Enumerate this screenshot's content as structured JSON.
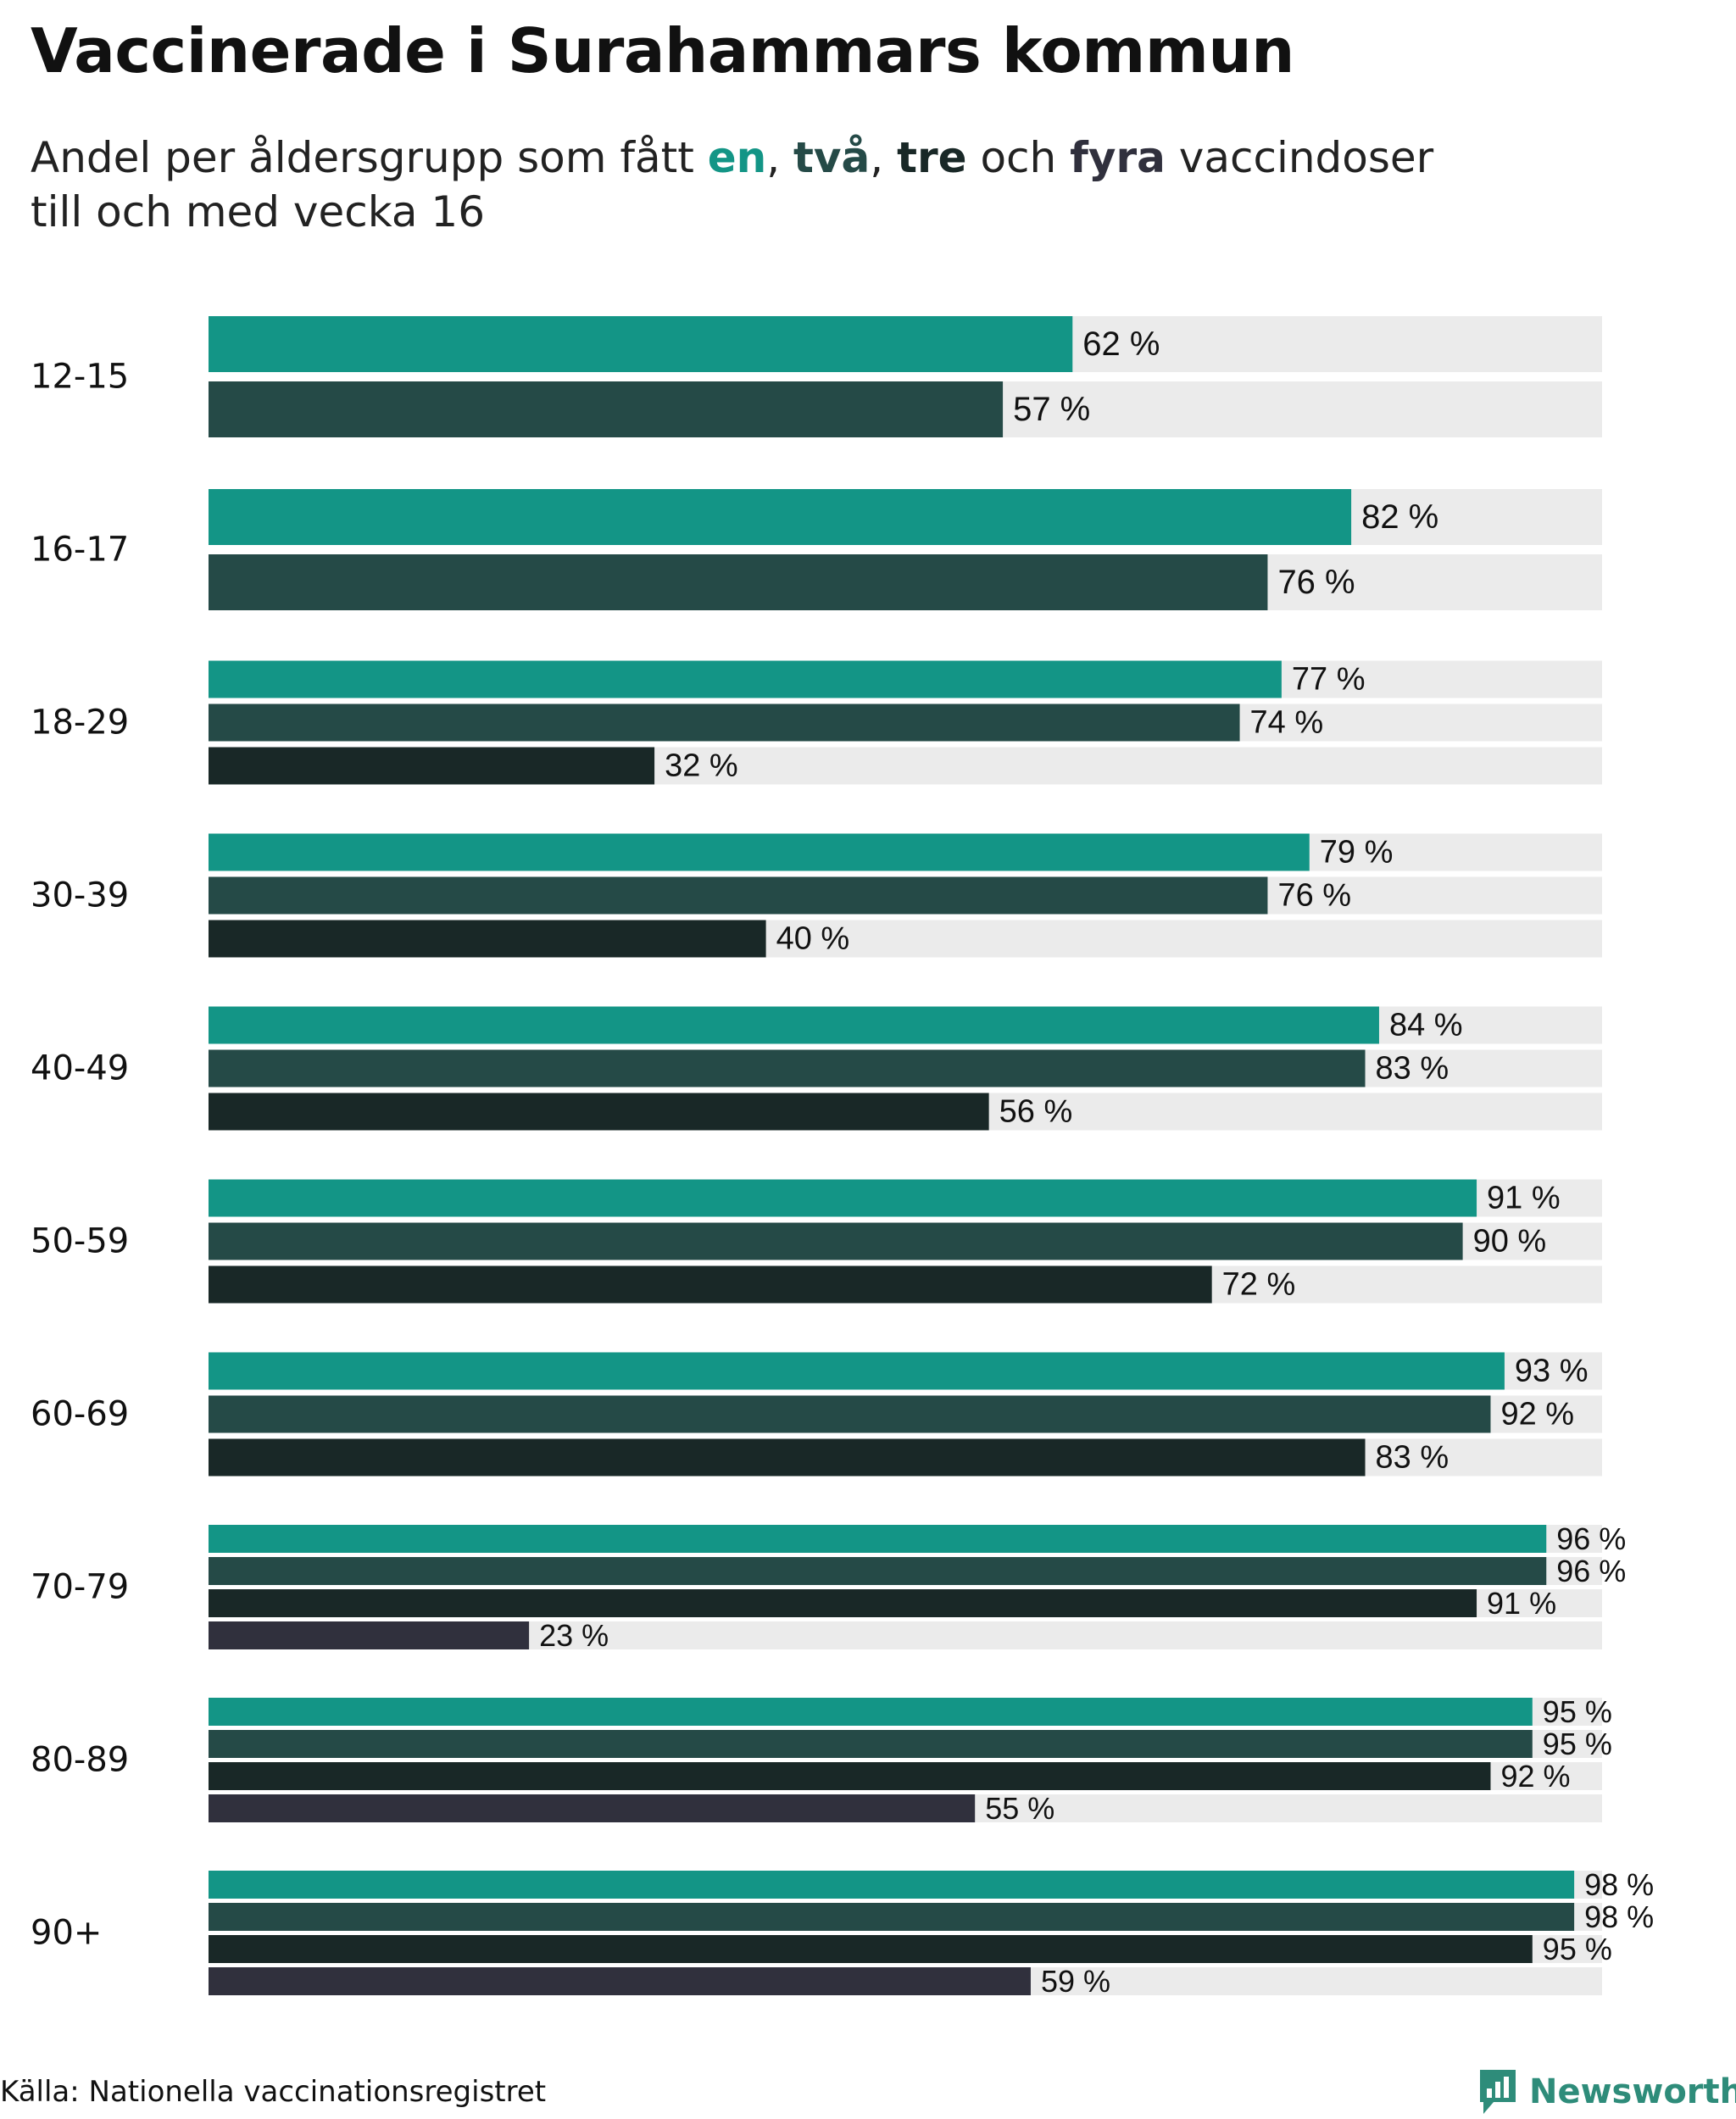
{
  "title": "Vaccinerade i Surahammars kommun",
  "subtitle": {
    "pre": "Andel per åldersgrupp som fått ",
    "k1": "en",
    "sep1": ", ",
    "k2": "två",
    "sep2": ", ",
    "k3": "tre",
    "mid": " och ",
    "k4": "fyra",
    "post": " vaccindoser",
    "line2": "till och med vecka 16"
  },
  "colors": {
    "dose1": "#139586",
    "dose2": "#254a47",
    "dose3": "#192827",
    "dose4": "#30303d",
    "track": "#ebebeb"
  },
  "chart_data": {
    "type": "bar",
    "orientation": "horizontal",
    "title": "Vaccinerade i Surahammars kommun",
    "xlim": [
      0,
      100
    ],
    "unit": "%",
    "legend": [
      "en",
      "två",
      "tre",
      "fyra"
    ],
    "categories": [
      "12-15",
      "16-17",
      "18-29",
      "30-39",
      "40-49",
      "50-59",
      "60-69",
      "70-79",
      "80-89",
      "90+"
    ],
    "series": [
      {
        "name": "en",
        "values": [
          62,
          82,
          77,
          79,
          84,
          91,
          93,
          96,
          95,
          98
        ]
      },
      {
        "name": "två",
        "values": [
          57,
          76,
          74,
          76,
          83,
          90,
          92,
          96,
          95,
          98
        ]
      },
      {
        "name": "tre",
        "values": [
          null,
          null,
          32,
          40,
          56,
          72,
          83,
          91,
          92,
          95
        ]
      },
      {
        "name": "fyra",
        "values": [
          null,
          null,
          null,
          null,
          null,
          null,
          null,
          23,
          55,
          59
        ]
      }
    ],
    "labels": [
      [
        "62 %",
        "57 %"
      ],
      [
        "82 %",
        "76 %"
      ],
      [
        "77 %",
        "74 %",
        "32 %"
      ],
      [
        "79 %",
        "76 %",
        "40 %"
      ],
      [
        "84 %",
        "83 %",
        "56 %"
      ],
      [
        "91 %",
        "90 %",
        "72 %"
      ],
      [
        "93 %",
        "92 %",
        "83 %"
      ],
      [
        "96 %",
        "96 %",
        "91 %",
        "23 %"
      ],
      [
        "95 %",
        "95 %",
        "92 %",
        "55 %"
      ],
      [
        "98 %",
        "98 %",
        "95 %",
        "59 %"
      ]
    ]
  },
  "footer": {
    "source": "Källa: Nationella vaccinationsregistret",
    "brand": "Newsworthy",
    "brand_icon": "newsworthy-logo-icon"
  }
}
